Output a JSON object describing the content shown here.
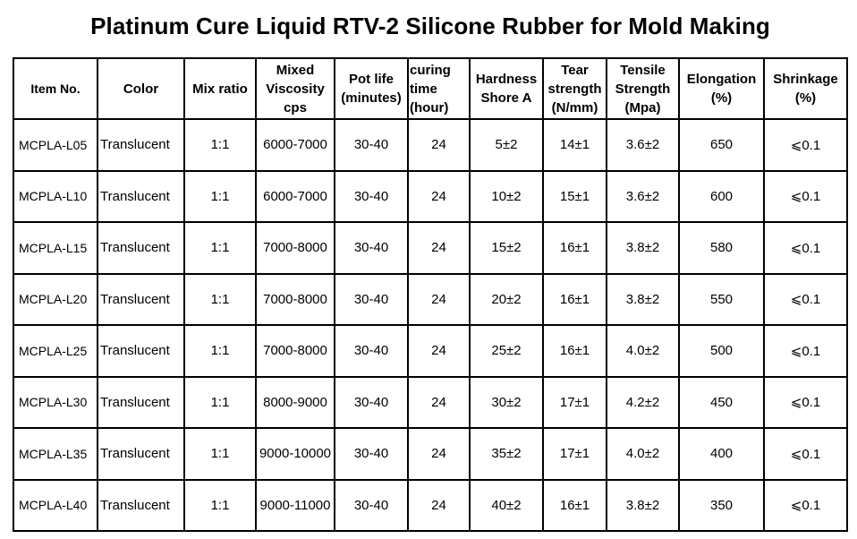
{
  "title": "Platinum Cure Liquid RTV-2 Silicone Rubber for Mold Making",
  "headers": [
    [
      "Item No."
    ],
    [
      "Color"
    ],
    [
      "Mix ratio"
    ],
    [
      "Mixed",
      "Viscosity",
      "cps"
    ],
    [
      "Pot life",
      "(minutes)"
    ],
    [
      "curing",
      "time",
      "(hour)"
    ],
    [
      "Hardness",
      "Shore A"
    ],
    [
      "Tear",
      "strength",
      "(N/mm)"
    ],
    [
      "Tensile",
      "Strength",
      "(Mpa)"
    ],
    [
      "Elongation",
      "(%)"
    ],
    [
      "Shrinkage",
      "(%)"
    ]
  ],
  "rows": [
    [
      "MCPLA-L05",
      "Translucent",
      "1:1",
      "6000-7000",
      "30-40",
      "24",
      "5±2",
      "14±1",
      "3.6±2",
      "650",
      "⩽0.1"
    ],
    [
      "MCPLA-L10",
      "Translucent",
      "1:1",
      "6000-7000",
      "30-40",
      "24",
      "10±2",
      "15±1",
      "3.6±2",
      "600",
      "⩽0.1"
    ],
    [
      "MCPLA-L15",
      "Translucent",
      "1:1",
      "7000-8000",
      "30-40",
      "24",
      "15±2",
      "16±1",
      "3.8±2",
      "580",
      "⩽0.1"
    ],
    [
      "MCPLA-L20",
      "Translucent",
      "1:1",
      "7000-8000",
      "30-40",
      "24",
      "20±2",
      "16±1",
      "3.8±2",
      "550",
      "⩽0.1"
    ],
    [
      "MCPLA-L25",
      "Translucent",
      "1:1",
      "7000-8000",
      "30-40",
      "24",
      "25±2",
      "16±1",
      "4.0±2",
      "500",
      "⩽0.1"
    ],
    [
      "MCPLA-L30",
      "Translucent",
      "1:1",
      "8000-9000",
      "30-40",
      "24",
      "30±2",
      "17±1",
      "4.2±2",
      "450",
      "⩽0.1"
    ],
    [
      "MCPLA-L35",
      "Translucent",
      "1:1",
      "9000-10000",
      "30-40",
      "24",
      "35±2",
      "17±1",
      "4.0±2",
      "400",
      "⩽0.1"
    ],
    [
      "MCPLA-L40",
      "Translucent",
      "1:1",
      "9000-11000",
      "30-40",
      "24",
      "40±2",
      "16±1",
      "3.8±2",
      "350",
      "⩽0.1"
    ]
  ]
}
